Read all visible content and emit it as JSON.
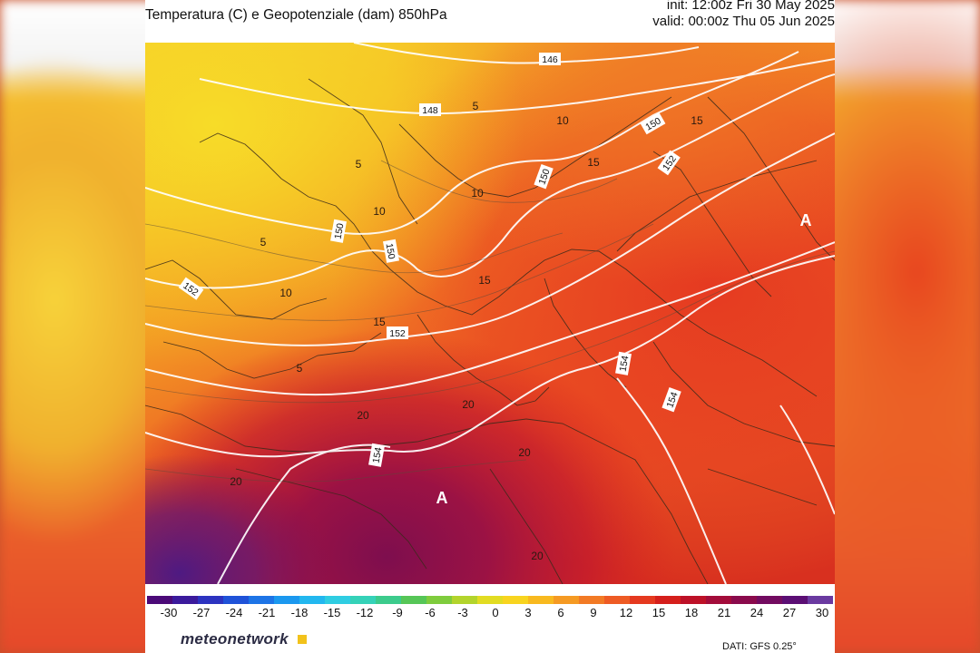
{
  "header": {
    "title": "Temperatura (C) e Geopotenziale (dam) 850hPa",
    "init": "init: 12:00z Fri 30 May 2025",
    "valid": "valid: 00:00z Thu 05 Jun 2025"
  },
  "map": {
    "geopotential_labels": [
      "146",
      "148",
      "150",
      "150",
      "150",
      "150",
      "152",
      "152",
      "152",
      "154",
      "154",
      "154"
    ],
    "temperature_labels": [
      "5",
      "5",
      "5",
      "10",
      "10",
      "10",
      "15",
      "15",
      "15",
      "15",
      "20",
      "20",
      "20",
      "20",
      "20",
      "10",
      "5"
    ],
    "high_pressure_labels": [
      "A",
      "A"
    ]
  },
  "colorbar": {
    "ticks": [
      "-30",
      "-27",
      "-24",
      "-21",
      "-18",
      "-15",
      "-12",
      "-9",
      "-6",
      "-3",
      "0",
      "3",
      "6",
      "9",
      "12",
      "15",
      "18",
      "21",
      "24",
      "27",
      "30"
    ],
    "colors": [
      "#4b0a78",
      "#3b1a9c",
      "#2c33c0",
      "#1f52d8",
      "#1d74e6",
      "#1b98ef",
      "#22b7ef",
      "#2fcde2",
      "#35d2b8",
      "#3ccb8c",
      "#56c657",
      "#7fcc3d",
      "#b3d42c",
      "#e2dc22",
      "#f8d41f",
      "#f8b91f",
      "#f59a23",
      "#f27a25",
      "#ee5b24",
      "#e5391f",
      "#d51f1c",
      "#bd1127",
      "#a30c3a",
      "#8a0a4c",
      "#720b60",
      "#5b0e74",
      "#6a3aa0"
    ]
  },
  "footer": {
    "brand": "meteonetwork",
    "source": "DATI: GFS 0.25°"
  }
}
